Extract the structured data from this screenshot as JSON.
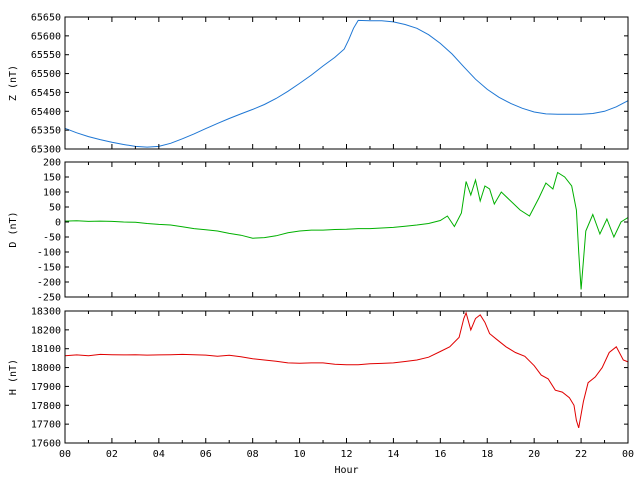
{
  "chart_data": [
    {
      "type": "line",
      "ylabel": "Z (nT)",
      "xlabel": "",
      "xlim": [
        0,
        24
      ],
      "ylim": [
        65300,
        65650
      ],
      "yticks": [
        65300,
        65350,
        65400,
        65450,
        65500,
        65550,
        65600,
        65650
      ],
      "xticks": [],
      "color": "#1f77d4",
      "grid": false,
      "series": [
        {
          "x": [
            0,
            0.5,
            1,
            1.5,
            2,
            2.5,
            3,
            3.5,
            4,
            4.5,
            5,
            5.5,
            6,
            6.5,
            7,
            7.5,
            8,
            8.5,
            9,
            9.5,
            10,
            10.5,
            11,
            11.5,
            11.9,
            12.1,
            12.3,
            12.5,
            13,
            13.5,
            14,
            14.5,
            15,
            15.5,
            16,
            16.5,
            17,
            17.5,
            18,
            18.5,
            19,
            19.5,
            20,
            20.5,
            21,
            21.5,
            22,
            22.5,
            23,
            23.5,
            24
          ],
          "y": [
            65355,
            65343,
            65333,
            65325,
            65318,
            65312,
            65307,
            65305,
            65307,
            65315,
            65327,
            65340,
            65354,
            65368,
            65381,
            65393,
            65405,
            65418,
            65434,
            65453,
            65474,
            65496,
            65520,
            65543,
            65565,
            65590,
            65620,
            65641,
            65640,
            65640,
            65637,
            65630,
            65620,
            65603,
            65580,
            65552,
            65518,
            65485,
            65458,
            65437,
            65421,
            65408,
            65398,
            65393,
            65392,
            65392,
            65392,
            65394,
            65400,
            65412,
            65428
          ]
        }
      ]
    },
    {
      "type": "line",
      "ylabel": "D (nT)",
      "xlabel": "",
      "xlim": [
        0,
        24
      ],
      "ylim": [
        -250,
        200
      ],
      "yticks": [
        -250,
        -200,
        -150,
        -100,
        -50,
        0,
        50,
        100,
        150,
        200
      ],
      "xticks": [],
      "color": "#00b000",
      "grid": false,
      "series": [
        {
          "x": [
            0,
            0.5,
            1,
            1.5,
            2,
            2.5,
            3,
            3.5,
            4,
            4.5,
            5,
            5.5,
            6,
            6.5,
            7,
            7.5,
            8,
            8.5,
            9,
            9.5,
            10,
            10.5,
            11,
            11.5,
            12,
            12.5,
            13,
            13.5,
            14,
            14.5,
            15,
            15.5,
            16,
            16.3,
            16.6,
            16.9,
            17.1,
            17.3,
            17.5,
            17.7,
            17.9,
            18.1,
            18.3,
            18.6,
            19,
            19.4,
            19.8,
            20.2,
            20.5,
            20.8,
            21,
            21.3,
            21.6,
            21.8,
            21.9,
            22,
            22.2,
            22.5,
            22.8,
            23.1,
            23.4,
            23.7,
            24
          ],
          "y": [
            3,
            4,
            2,
            3,
            2,
            0,
            -1,
            -5,
            -8,
            -10,
            -16,
            -22,
            -26,
            -30,
            -38,
            -44,
            -54,
            -52,
            -46,
            -36,
            -30,
            -27,
            -27,
            -25,
            -24,
            -22,
            -22,
            -20,
            -18,
            -14,
            -10,
            -5,
            5,
            20,
            -15,
            30,
            135,
            90,
            140,
            70,
            120,
            110,
            60,
            100,
            70,
            40,
            20,
            80,
            130,
            110,
            165,
            150,
            120,
            40,
            -100,
            -225,
            -30,
            25,
            -40,
            10,
            -50,
            0,
            15
          ]
        }
      ]
    },
    {
      "type": "line",
      "ylabel": "H (nT)",
      "xlabel": "Hour",
      "xlim": [
        0,
        24
      ],
      "ylim": [
        17600,
        18300
      ],
      "yticks": [
        17600,
        17700,
        17800,
        17900,
        18000,
        18100,
        18200,
        18300
      ],
      "xticks": [
        "00",
        "02",
        "04",
        "06",
        "08",
        "10",
        "12",
        "14",
        "16",
        "18",
        "20",
        "22",
        "00"
      ],
      "color": "#e00000",
      "grid": false,
      "series": [
        {
          "x": [
            0,
            0.5,
            1,
            1.5,
            2,
            2.5,
            3,
            3.5,
            4,
            4.5,
            5,
            5.5,
            6,
            6.5,
            7,
            7.5,
            8,
            8.5,
            9,
            9.5,
            10,
            10.5,
            11,
            11.5,
            12,
            12.5,
            13,
            13.5,
            14,
            14.5,
            15,
            15.5,
            16,
            16.4,
            16.8,
            17,
            17.1,
            17.3,
            17.5,
            17.7,
            17.9,
            18.1,
            18.4,
            18.8,
            19.2,
            19.6,
            20,
            20.3,
            20.6,
            20.9,
            21.2,
            21.5,
            21.7,
            21.8,
            21.9,
            22.1,
            22.3,
            22.6,
            22.9,
            23.2,
            23.5,
            23.8,
            24
          ],
          "y": [
            18063,
            18067,
            18063,
            18070,
            18068,
            18067,
            18068,
            18066,
            18067,
            18068,
            18070,
            18068,
            18066,
            18060,
            18065,
            18057,
            18047,
            18040,
            18033,
            18025,
            18023,
            18025,
            18025,
            18018,
            18015,
            18015,
            18020,
            18022,
            18025,
            18032,
            18040,
            18055,
            18085,
            18110,
            18160,
            18260,
            18290,
            18200,
            18260,
            18280,
            18240,
            18180,
            18150,
            18110,
            18080,
            18060,
            18010,
            17960,
            17940,
            17880,
            17870,
            17840,
            17800,
            17720,
            17680,
            17820,
            17920,
            17950,
            18000,
            18080,
            18110,
            18040,
            18030
          ]
        }
      ]
    }
  ]
}
